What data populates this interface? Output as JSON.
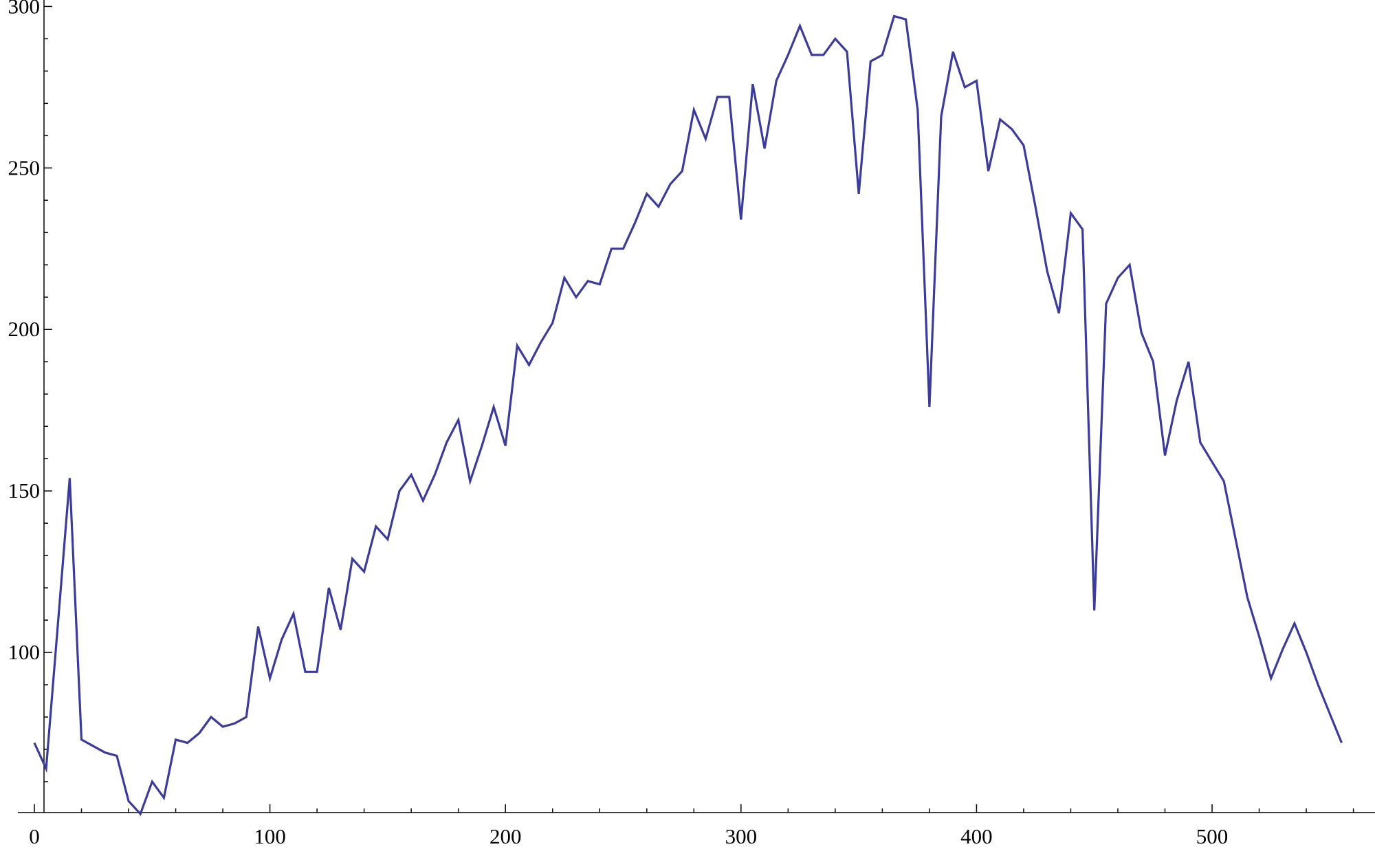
{
  "chart_data": {
    "type": "line",
    "title": "",
    "xlabel": "",
    "ylabel": "",
    "xlim": [
      0,
      568
    ],
    "ylim": [
      50,
      302
    ],
    "x_ticks": [
      0,
      100,
      200,
      300,
      400,
      500
    ],
    "y_ticks": [
      100,
      150,
      200,
      250,
      300
    ],
    "x_tick_labels": [
      "0",
      "100",
      "200",
      "300",
      "400",
      "500"
    ],
    "y_tick_labels": [
      "100",
      "150",
      "200",
      "250",
      "300"
    ],
    "grid": false,
    "legend": "none",
    "colors": {
      "line": "#3b3b9c",
      "axis": "#000000",
      "background": "#ffffff"
    },
    "series": [
      {
        "x": [
          0,
          5,
          10,
          15,
          20,
          25,
          30,
          35,
          40,
          45,
          50,
          55,
          60,
          65,
          70,
          75,
          80,
          85,
          90,
          95,
          100,
          105,
          110,
          115,
          120,
          125,
          130,
          135,
          140,
          145,
          150,
          155,
          160,
          165,
          170,
          175,
          180,
          185,
          190,
          195,
          200,
          205,
          210,
          215,
          220,
          225,
          230,
          235,
          240,
          245,
          250,
          255,
          260,
          265,
          270,
          275,
          280,
          285,
          290,
          295,
          300,
          305,
          310,
          315,
          320,
          325,
          330,
          335,
          340,
          345,
          350,
          355,
          360,
          365,
          370,
          375,
          380,
          385,
          390,
          395,
          400,
          405,
          410,
          415,
          420,
          425,
          430,
          435,
          440,
          445,
          450,
          455,
          460,
          465,
          470,
          475,
          480,
          485,
          490,
          495,
          500,
          505,
          510,
          515,
          520,
          525,
          530,
          535,
          540,
          545,
          550,
          555
        ],
        "values": [
          72,
          64,
          109,
          154,
          73,
          71,
          69,
          68,
          54,
          50,
          60,
          55,
          73,
          72,
          75,
          80,
          77,
          78,
          80,
          108,
          92,
          104,
          112,
          94,
          94,
          120,
          107,
          129,
          125,
          139,
          135,
          150,
          155,
          147,
          155,
          165,
          172,
          153,
          164,
          176,
          164,
          195,
          189,
          196,
          202,
          216,
          210,
          215,
          214,
          225,
          225,
          233,
          242,
          238,
          245,
          249,
          268,
          259,
          272,
          272,
          234,
          276,
          256,
          277,
          285,
          294,
          285,
          285,
          290,
          286,
          242,
          283,
          285,
          297,
          296,
          268,
          176,
          266,
          286,
          275,
          277,
          249,
          265,
          262,
          257,
          238,
          218,
          205,
          236,
          231,
          113,
          208,
          216,
          220,
          199,
          190,
          161,
          178,
          190,
          165,
          159,
          153,
          135,
          117,
          105,
          92,
          101,
          109,
          100,
          90,
          81,
          72
        ]
      }
    ]
  }
}
